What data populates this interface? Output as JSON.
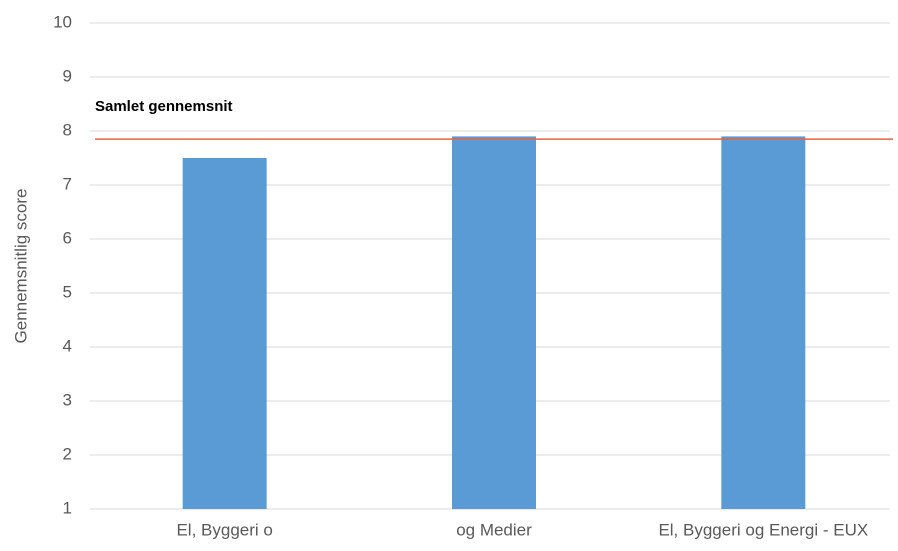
{
  "chart_data": {
    "type": "bar",
    "y_label": "Gennemsnitlig score",
    "categories": [
      "El, Byggeri o",
      "og Medier",
      "El, Byggeri og Energi - EUX"
    ],
    "values": [
      7.5,
      7.9,
      7.9
    ],
    "color": "#5b9bd5",
    "ylim": [
      1,
      10
    ],
    "yticks": [
      1,
      2,
      3,
      4,
      5,
      6,
      7,
      8,
      9,
      10
    ],
    "grid": true,
    "reference_line": {
      "label": "Samlet gennemsnit",
      "value": 7.85,
      "color": "#e8643c"
    }
  }
}
